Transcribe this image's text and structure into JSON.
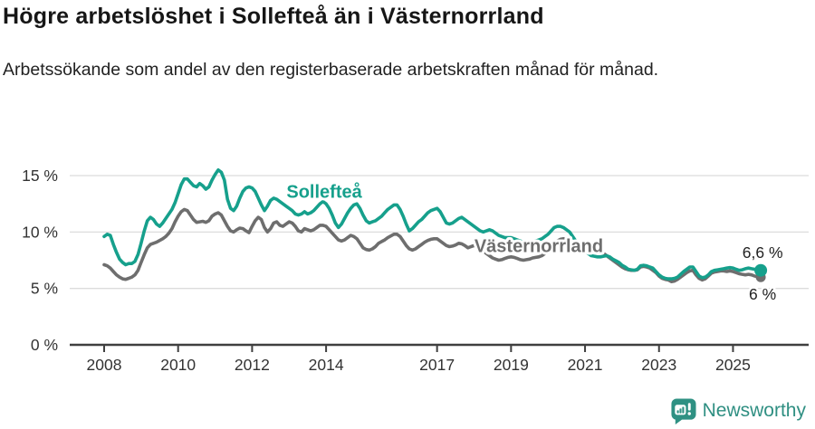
{
  "header": {
    "title": "Högre arbetslöshet i Sollefteå än i Västernorrland",
    "subtitle": "Arbetssökande som andel av den registerbaserade arbetskraften månad för månad."
  },
  "footer": {
    "brand": "Newsworthy",
    "logo_icon": "newsworthy-speech-bubble-chart-icon"
  },
  "colors": {
    "accent_teal": "#16a08c",
    "series_gray": "#6e6e6e",
    "grid": "#dcdcdc",
    "axis": "#3f3f3f",
    "text": "#333333",
    "annotation_text": "#222222",
    "brand_teal": "#2f8f82"
  },
  "chart_data": {
    "type": "line",
    "title": "Högre arbetslöshet i Sollefteå än i Västernorrland",
    "subtitle": "Arbetssökande som andel av den registerbaserade arbetskraften månad för månad.",
    "xlabel": "",
    "ylabel": "",
    "grid": "horizontal",
    "legend_position": "inline-labels",
    "x_unit": "month",
    "x_start_year": 2008,
    "x_end": "2025-10",
    "xlim": [
      2007.07,
      2027.0
    ],
    "ylim": [
      0,
      16.1
    ],
    "y_ticks": [
      {
        "label": "0 %",
        "value": 0
      },
      {
        "label": "5 %",
        "value": 5
      },
      {
        "label": "10 %",
        "value": 10
      },
      {
        "label": "15 %",
        "value": 15
      }
    ],
    "x_ticks": [
      {
        "label": "2008",
        "year": 2008
      },
      {
        "label": "2010",
        "year": 2010
      },
      {
        "label": "2012",
        "year": 2012
      },
      {
        "label": "2014",
        "year": 2014
      },
      {
        "label": "2017",
        "year": 2017
      },
      {
        "label": "2019",
        "year": 2019
      },
      {
        "label": "2021",
        "year": 2021
      },
      {
        "label": "2023",
        "year": 2023
      },
      {
        "label": "2025",
        "year": 2025
      }
    ],
    "series": [
      {
        "name": "Västernorrland",
        "color": "#6e6e6e",
        "label": {
          "text": "Västernorrland",
          "year": 2019.75,
          "pct": 8.8
        },
        "end_label": {
          "text": "6 %",
          "year": 2025.8,
          "pct": 4.5
        },
        "end_value": 6.0,
        "values": [
          7.1,
          7.0,
          6.8,
          6.5,
          6.2,
          6.0,
          5.85,
          5.8,
          5.9,
          6.0,
          6.2,
          6.6,
          7.3,
          8.0,
          8.6,
          8.9,
          9.0,
          9.1,
          9.25,
          9.4,
          9.6,
          9.9,
          10.3,
          10.9,
          11.4,
          11.8,
          12.0,
          11.9,
          11.5,
          11.1,
          10.85,
          10.9,
          10.95,
          10.85,
          11.0,
          11.4,
          11.6,
          11.7,
          11.5,
          11.0,
          10.5,
          10.1,
          10.0,
          10.2,
          10.35,
          10.3,
          10.1,
          9.95,
          10.5,
          11.0,
          11.3,
          11.1,
          10.4,
          10.0,
          10.3,
          10.8,
          10.9,
          10.6,
          10.5,
          10.7,
          10.9,
          10.8,
          10.5,
          10.1,
          10.0,
          10.3,
          10.2,
          10.1,
          10.2,
          10.4,
          10.6,
          10.6,
          10.5,
          10.2,
          9.9,
          9.6,
          9.3,
          9.2,
          9.3,
          9.5,
          9.7,
          9.6,
          9.4,
          9.0,
          8.6,
          8.45,
          8.4,
          8.5,
          8.7,
          9.0,
          9.15,
          9.3,
          9.5,
          9.65,
          9.8,
          9.8,
          9.6,
          9.2,
          8.8,
          8.5,
          8.4,
          8.5,
          8.7,
          8.9,
          9.1,
          9.25,
          9.35,
          9.4,
          9.4,
          9.2,
          9.0,
          8.8,
          8.7,
          8.75,
          8.85,
          9.0,
          8.95,
          8.8,
          8.6,
          8.7,
          8.8,
          8.7,
          8.5,
          8.3,
          8.1,
          7.9,
          7.7,
          7.6,
          7.5,
          7.55,
          7.65,
          7.75,
          7.8,
          7.75,
          7.65,
          7.55,
          7.5,
          7.55,
          7.6,
          7.7,
          7.75,
          7.8,
          7.9,
          8.1,
          8.3,
          8.6,
          8.9,
          9.2,
          9.35,
          9.4,
          9.35,
          9.25,
          9.1,
          8.9,
          8.7,
          8.55,
          8.45,
          8.4,
          8.35,
          8.3,
          8.3,
          8.25,
          8.1,
          7.9,
          7.7,
          7.5,
          7.3,
          7.1,
          6.9,
          6.75,
          6.65,
          6.6,
          6.6,
          6.65,
          6.9,
          6.95,
          6.9,
          6.8,
          6.6,
          6.4,
          6.1,
          5.9,
          5.8,
          5.75,
          5.6,
          5.65,
          5.8,
          6.0,
          6.2,
          6.4,
          6.55,
          6.6,
          6.2,
          5.9,
          5.75,
          5.85,
          6.1,
          6.35,
          6.45,
          6.5,
          6.55,
          6.55,
          6.5,
          6.55,
          6.5,
          6.4,
          6.3,
          6.25,
          6.2,
          6.25,
          6.2,
          6.1,
          6.05,
          6.0
        ]
      },
      {
        "name": "Sollefteå",
        "color": "#16a08c",
        "label": {
          "text": "Sollefteå",
          "year": 2013.95,
          "pct": 13.6
        },
        "end_label": {
          "text": "6,6 %",
          "year": 2025.8,
          "pct": 8.2
        },
        "end_value": 6.6,
        "values": [
          9.6,
          9.8,
          9.7,
          8.9,
          8.2,
          7.6,
          7.3,
          7.1,
          7.2,
          7.2,
          7.4,
          8.0,
          9.0,
          10.1,
          11.0,
          11.3,
          11.1,
          10.7,
          10.5,
          10.8,
          11.2,
          11.6,
          12.0,
          12.6,
          13.4,
          14.2,
          14.7,
          14.7,
          14.4,
          14.1,
          14.0,
          14.3,
          14.1,
          13.8,
          14.0,
          14.6,
          15.1,
          15.5,
          15.3,
          14.6,
          12.9,
          12.1,
          11.9,
          12.3,
          13.0,
          13.6,
          13.9,
          14.0,
          13.9,
          13.6,
          13.0,
          12.4,
          11.9,
          12.3,
          12.8,
          13.0,
          12.9,
          12.7,
          12.5,
          12.3,
          12.1,
          11.9,
          11.6,
          11.5,
          11.6,
          11.8,
          11.6,
          11.7,
          11.9,
          12.2,
          12.5,
          12.7,
          12.5,
          12.1,
          11.5,
          10.8,
          10.4,
          10.7,
          11.2,
          11.7,
          12.1,
          12.4,
          12.5,
          12.1,
          11.5,
          11.0,
          10.8,
          10.9,
          11.0,
          11.2,
          11.4,
          11.7,
          12.0,
          12.2,
          12.4,
          12.4,
          12.0,
          11.4,
          10.7,
          10.1,
          10.3,
          10.6,
          10.9,
          11.1,
          11.4,
          11.7,
          11.9,
          12.0,
          12.1,
          11.8,
          11.3,
          10.8,
          10.7,
          10.8,
          11.0,
          11.2,
          11.3,
          11.1,
          10.9,
          10.7,
          10.5,
          10.3,
          10.1,
          10.0,
          10.1,
          10.2,
          10.1,
          9.9,
          9.7,
          9.6,
          9.5,
          9.5,
          9.5,
          9.4,
          9.3,
          9.2,
          9.1,
          9.0,
          9.0,
          9.1,
          9.2,
          9.3,
          9.4,
          9.6,
          9.8,
          10.1,
          10.4,
          10.5,
          10.5,
          10.4,
          10.2,
          10.0,
          9.6,
          9.2,
          8.8,
          8.5,
          8.3,
          8.1,
          7.9,
          7.85,
          7.8,
          7.8,
          7.85,
          7.9,
          7.8,
          7.6,
          7.45,
          7.3,
          7.05,
          6.9,
          6.7,
          6.65,
          6.6,
          6.7,
          7.0,
          7.05,
          7.0,
          6.9,
          6.8,
          6.5,
          6.2,
          6.0,
          5.9,
          5.85,
          5.85,
          5.9,
          6.0,
          6.25,
          6.5,
          6.7,
          6.9,
          6.9,
          6.5,
          6.1,
          5.95,
          6.0,
          6.2,
          6.5,
          6.6,
          6.65,
          6.7,
          6.75,
          6.8,
          6.85,
          6.8,
          6.7,
          6.6,
          6.65,
          6.75,
          6.8,
          6.75,
          6.7,
          6.6,
          6.6
        ]
      }
    ]
  }
}
